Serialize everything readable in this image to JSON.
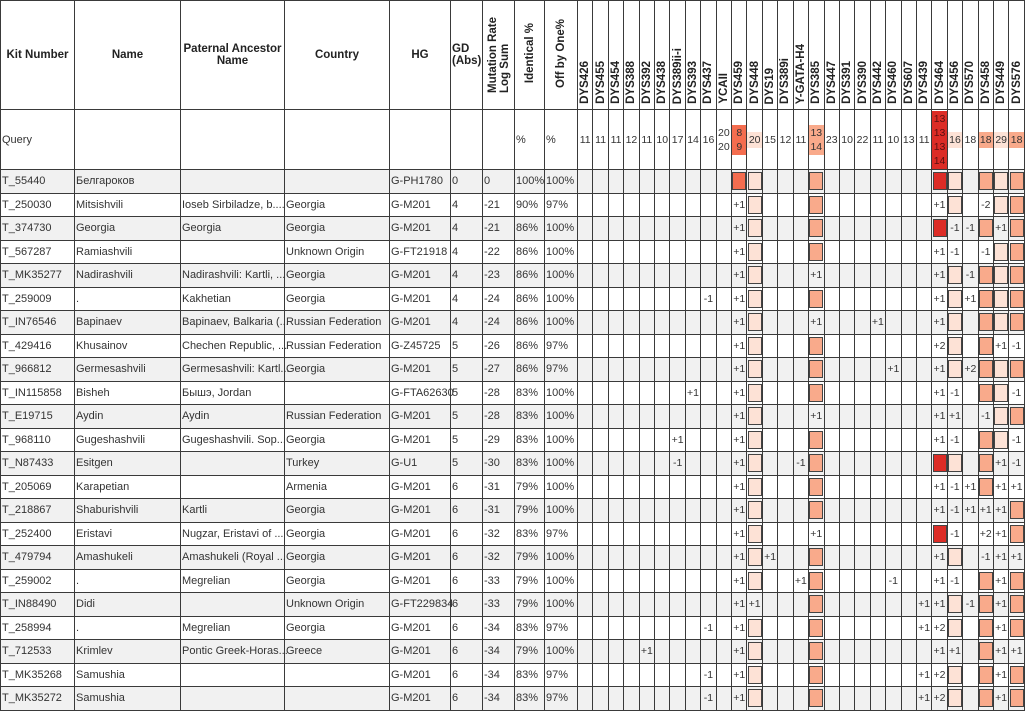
{
  "headers": {
    "kit": "Kit Number",
    "name": "Name",
    "ancestor": "Paternal Ancestor Name",
    "country": "Country",
    "hg": "HG",
    "gd": "GD (Abs)",
    "mut": "Mutation Rate Log Sum",
    "ident": "Identical %",
    "off": "Off by One%"
  },
  "markers": [
    "DYS426",
    "DYS455",
    "DYS454",
    "DYS388",
    "DYS392",
    "DYS438",
    "DYS389ii-i",
    "DYS393",
    "DYS437",
    "YCAII",
    "DYS459",
    "DYS448",
    "DYS19",
    "DYS389i",
    "Y-GATA-H4",
    "DYS385",
    "DYS447",
    "DYS391",
    "DYS390",
    "DYS442",
    "DYS460",
    "DYS607",
    "DYS439",
    "DYS464",
    "DYS456",
    "DYS570",
    "DYS458",
    "DYS449",
    "DYS576"
  ],
  "marker_colors": {
    "DYS459": "#f46d4f",
    "DYS448": "#fde2d6",
    "DYS385": "#f9aa8b",
    "DYS464": "#dc2c26",
    "DYS456": "#fde2d6",
    "DYS458": "#f9aa8b",
    "DYS449": "#fde2d6",
    "DYS576": "#f9aa8b"
  },
  "query": {
    "label": "Query",
    "ident": "%",
    "off": "%",
    "values": [
      [
        "11"
      ],
      [
        "11"
      ],
      [
        "11"
      ],
      [
        "12"
      ],
      [
        "11"
      ],
      [
        "10"
      ],
      [
        "17"
      ],
      [
        "14"
      ],
      [
        "16"
      ],
      [
        "20",
        "20"
      ],
      [
        "8",
        "9"
      ],
      [
        "20"
      ],
      [
        "15"
      ],
      [
        "12"
      ],
      [
        "11"
      ],
      [
        "13",
        "14"
      ],
      [
        "23"
      ],
      [
        "10"
      ],
      [
        "22"
      ],
      [
        "11"
      ],
      [
        "10"
      ],
      [
        "13"
      ],
      [
        "11"
      ],
      [
        "13",
        "13",
        "13",
        "14"
      ],
      [
        "16"
      ],
      [
        "18"
      ],
      [
        "18"
      ],
      [
        "29"
      ],
      [
        "18"
      ]
    ]
  },
  "rows": [
    {
      "kit": "T_55440",
      "name": "Белгароков",
      "ancestor": "",
      "country": "",
      "hg": "G-PH1780",
      "gd": "0",
      "mut": "0",
      "ident": "100%",
      "off": "100%",
      "diffs": {}
    },
    {
      "kit": "T_250030",
      "name": "Mitsishvili",
      "ancestor": "Ioseb Sirbiladze, b....",
      "country": "Georgia",
      "hg": "G-M201",
      "gd": "4",
      "mut": "-21",
      "ident": "90%",
      "off": "97%",
      "diffs": {
        "DYS459": "+1",
        "DYS464": "+1",
        "DYS458": "-2"
      }
    },
    {
      "kit": "T_374730",
      "name": "Georgia",
      "ancestor": "Georgia",
      "country": "Georgia",
      "hg": "G-M201",
      "gd": "4",
      "mut": "-21",
      "ident": "86%",
      "off": "100%",
      "diffs": {
        "DYS459": "+1",
        "DYS456": "-1",
        "DYS570": "-1",
        "DYS449": "+1"
      }
    },
    {
      "kit": "T_567287",
      "name": "Ramiashvili",
      "ancestor": "",
      "country": "Unknown Origin",
      "hg": "G-FT21918",
      "gd": "4",
      "mut": "-22",
      "ident": "86%",
      "off": "100%",
      "diffs": {
        "DYS459": "+1",
        "DYS464": "+1",
        "DYS456": "-1",
        "DYS458": "-1"
      }
    },
    {
      "kit": "T_MK35277",
      "name": "Nadirashvili",
      "ancestor": "Nadirashvili: Kartli, ...",
      "country": "Georgia",
      "hg": "G-M201",
      "gd": "4",
      "mut": "-23",
      "ident": "86%",
      "off": "100%",
      "diffs": {
        "DYS459": "+1",
        "DYS385": "+1",
        "DYS464": "+1",
        "DYS570": "-1"
      }
    },
    {
      "kit": "T_259009",
      "name": ".",
      "ancestor": "Kakhetian",
      "country": "Georgia",
      "hg": "G-M201",
      "gd": "4",
      "mut": "-24",
      "ident": "86%",
      "off": "100%",
      "diffs": {
        "DYS437": "-1",
        "DYS459": "+1",
        "DYS464": "+1",
        "DYS570": "+1"
      }
    },
    {
      "kit": "T_IN76546",
      "name": "Bapinaev",
      "ancestor": "Bapinaev, Balkaria (...",
      "country": "Russian Federation",
      "hg": "G-M201",
      "gd": "4",
      "mut": "-24",
      "ident": "86%",
      "off": "100%",
      "diffs": {
        "DYS459": "+1",
        "DYS385": "+1",
        "DYS442": "+1",
        "DYS464": "+1"
      }
    },
    {
      "kit": "T_429416",
      "name": "Khusainov",
      "ancestor": "Chechen Republic, ...",
      "country": "Russian Federation",
      "hg": "G-Z45725",
      "gd": "5",
      "mut": "-26",
      "ident": "86%",
      "off": "97%",
      "diffs": {
        "DYS459": "+1",
        "DYS464": "+2",
        "DYS449": "+1",
        "DYS576": "-1"
      }
    },
    {
      "kit": "T_966812",
      "name": "Germesashvili",
      "ancestor": "Germesashvili: Kartl...",
      "country": "Georgia",
      "hg": "G-M201",
      "gd": "5",
      "mut": "-27",
      "ident": "86%",
      "off": "97%",
      "diffs": {
        "DYS459": "+1",
        "DYS460": "+1",
        "DYS464": "+1",
        "DYS570": "+2"
      }
    },
    {
      "kit": "T_IN115858",
      "name": "Bisheh",
      "ancestor": "Бышэ, Jordan",
      "country": "",
      "hg": "G-FTA62630",
      "gd": "5",
      "mut": "-28",
      "ident": "83%",
      "off": "100%",
      "diffs": {
        "DYS393": "+1",
        "DYS459": "+1",
        "DYS464": "+1",
        "DYS456": "-1",
        "DYS576": "-1"
      }
    },
    {
      "kit": "T_E19715",
      "name": "Aydin",
      "ancestor": "Aydin",
      "country": "Russian Federation",
      "hg": "G-M201",
      "gd": "5",
      "mut": "-28",
      "ident": "83%",
      "off": "100%",
      "diffs": {
        "DYS459": "+1",
        "DYS385": "+1",
        "DYS464": "+1",
        "DYS456": "+1",
        "DYS458": "-1"
      }
    },
    {
      "kit": "T_968110",
      "name": "Gugeshashvili",
      "ancestor": "Gugeshashvili. Sop...",
      "country": "Georgia",
      "hg": "G-M201",
      "gd": "5",
      "mut": "-29",
      "ident": "83%",
      "off": "100%",
      "diffs": {
        "DYS389ii-i": "+1",
        "DYS459": "+1",
        "DYS464": "+1",
        "DYS456": "-1",
        "DYS576": "-1"
      }
    },
    {
      "kit": "T_N87433",
      "name": "Esitgen",
      "ancestor": "",
      "country": "Turkey",
      "hg": "G-U1",
      "gd": "5",
      "mut": "-30",
      "ident": "83%",
      "off": "100%",
      "diffs": {
        "DYS389ii-i": "-1",
        "DYS459": "+1",
        "Y-GATA-H4": "-1",
        "DYS449": "+1",
        "DYS576": "-1"
      }
    },
    {
      "kit": "T_205069",
      "name": "Karapetian",
      "ancestor": "",
      "country": "Armenia",
      "hg": "G-M201",
      "gd": "6",
      "mut": "-31",
      "ident": "79%",
      "off": "100%",
      "diffs": {
        "DYS459": "+1",
        "DYS464": "+1",
        "DYS456": "-1",
        "DYS570": "+1",
        "DYS449": "+1",
        "DYS576": "+1"
      }
    },
    {
      "kit": "T_218867",
      "name": "Shaburishvili",
      "ancestor": "Kartli",
      "country": "Georgia",
      "hg": "G-M201",
      "gd": "6",
      "mut": "-31",
      "ident": "79%",
      "off": "100%",
      "diffs": {
        "DYS459": "+1",
        "DYS464": "+1",
        "DYS456": "-1",
        "DYS570": "+1",
        "DYS458": "+1",
        "DYS449": "+1"
      }
    },
    {
      "kit": "T_252400",
      "name": "Eristavi",
      "ancestor": "Nugzar, Eristavi of ...",
      "country": "Georgia",
      "hg": "G-M201",
      "gd": "6",
      "mut": "-32",
      "ident": "83%",
      "off": "97%",
      "diffs": {
        "DYS459": "+1",
        "DYS385": "+1",
        "DYS456": "-1",
        "DYS458": "+2",
        "DYS449": "+1"
      }
    },
    {
      "kit": "T_479794",
      "name": "Amashukeli",
      "ancestor": "Amashukeli (Royal ...",
      "country": "Georgia",
      "hg": "G-M201",
      "gd": "6",
      "mut": "-32",
      "ident": "79%",
      "off": "100%",
      "diffs": {
        "DYS459": "+1",
        "DYS19": "+1",
        "DYS464": "+1",
        "DYS458": "-1",
        "DYS449": "+1",
        "DYS576": "+1"
      }
    },
    {
      "kit": "T_259002",
      "name": ".",
      "ancestor": "Megrelian",
      "country": "Georgia",
      "hg": "G-M201",
      "gd": "6",
      "mut": "-33",
      "ident": "79%",
      "off": "100%",
      "diffs": {
        "DYS459": "+1",
        "Y-GATA-H4": "+1",
        "DYS460": "-1",
        "DYS464": "+1",
        "DYS456": "-1",
        "DYS449": "+1"
      }
    },
    {
      "kit": "T_IN88490",
      "name": "Didi",
      "ancestor": "",
      "country": "Unknown Origin",
      "hg": "G-FT229834",
      "gd": "6",
      "mut": "-33",
      "ident": "79%",
      "off": "100%",
      "diffs": {
        "DYS459": "+1",
        "DYS448": "+1",
        "DYS439": "+1",
        "DYS464": "+1",
        "DYS570": "-1",
        "DYS449": "+1"
      }
    },
    {
      "kit": "T_258994",
      "name": ".",
      "ancestor": "Megrelian",
      "country": "Georgia",
      "hg": "G-M201",
      "gd": "6",
      "mut": "-34",
      "ident": "83%",
      "off": "97%",
      "diffs": {
        "DYS437": "-1",
        "DYS459": "+1",
        "DYS439": "+1",
        "DYS464": "+2",
        "DYS449": "+1"
      }
    },
    {
      "kit": "T_712533",
      "name": "Krimlev",
      "ancestor": "Pontic Greek-Horas...",
      "country": "Greece",
      "hg": "G-M201",
      "gd": "6",
      "mut": "-34",
      "ident": "79%",
      "off": "100%",
      "diffs": {
        "DYS392": "+1",
        "DYS459": "+1",
        "DYS464": "+1",
        "DYS456": "+1",
        "DYS449": "+1",
        "DYS576": "+1"
      }
    },
    {
      "kit": "T_MK35268",
      "name": "Samushia",
      "ancestor": "",
      "country": "",
      "hg": "G-M201",
      "gd": "6",
      "mut": "-34",
      "ident": "83%",
      "off": "97%",
      "diffs": {
        "DYS437": "-1",
        "DYS459": "+1",
        "DYS439": "+1",
        "DYS464": "+2",
        "DYS449": "+1"
      }
    },
    {
      "kit": "T_MK35272",
      "name": "Samushia",
      "ancestor": "",
      "country": "",
      "hg": "G-M201",
      "gd": "6",
      "mut": "-34",
      "ident": "83%",
      "off": "97%",
      "diffs": {
        "DYS437": "-1",
        "DYS459": "+1",
        "DYS439": "+1",
        "DYS464": "+2",
        "DYS449": "+1"
      }
    }
  ]
}
